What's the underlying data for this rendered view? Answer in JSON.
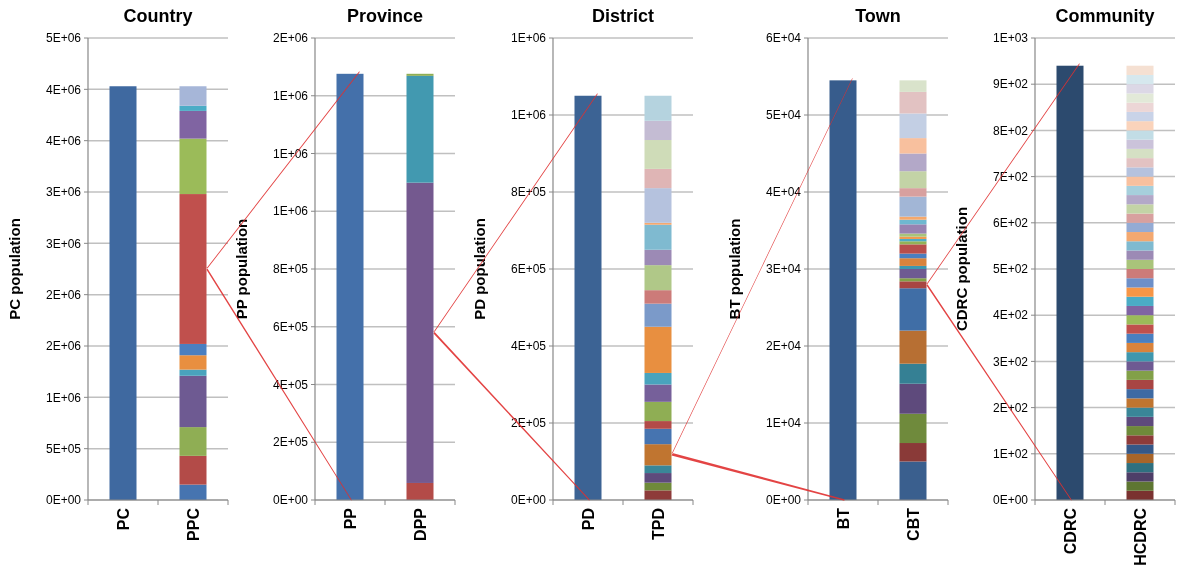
{
  "chart_data": [
    {
      "type": "bar",
      "stacked": true,
      "title": "Country",
      "ylabel": "PC population",
      "categories": [
        "PC",
        "PPC"
      ],
      "grid": "y",
      "ylim": [
        0,
        4500000
      ],
      "yticks": [
        {
          "value": 0,
          "label": "0E+00"
        },
        {
          "value": 500000,
          "label": "5E+05"
        },
        {
          "value": 1000000,
          "label": "1E+06"
        },
        {
          "value": 1500000,
          "label": "2E+06"
        },
        {
          "value": 2000000,
          "label": "2E+06"
        },
        {
          "value": 2500000,
          "label": "3E+06"
        },
        {
          "value": 3000000,
          "label": "3E+06"
        },
        {
          "value": 3500000,
          "label": "4E+06"
        },
        {
          "value": 4000000,
          "label": "4E+06"
        },
        {
          "value": 4500000,
          "label": "5E+06"
        }
      ],
      "series": [
        {
          "color": "#3f69a0",
          "values": [
            4030000,
            null
          ]
        },
        {
          "color": "#4674b0",
          "values": [
            null,
            150000
          ]
        },
        {
          "color": "#b34b48",
          "values": [
            null,
            280000
          ]
        },
        {
          "color": "#8fae54",
          "values": [
            null,
            280000
          ]
        },
        {
          "color": "#6e5a92",
          "values": [
            null,
            500000
          ]
        },
        {
          "color": "#49a3bd",
          "values": [
            null,
            60000
          ]
        },
        {
          "color": "#e88f40",
          "values": [
            null,
            140000
          ]
        },
        {
          "color": "#4a7fc0",
          "values": [
            null,
            110000
          ]
        },
        {
          "color": "#c0504d",
          "values": [
            null,
            1460000
          ]
        },
        {
          "color": "#9bbb59",
          "values": [
            null,
            540000
          ]
        },
        {
          "color": "#8064a2",
          "values": [
            null,
            270000
          ]
        },
        {
          "color": "#4bacc6",
          "values": [
            null,
            50000
          ]
        },
        {
          "color": "#a6b6d8",
          "values": [
            null,
            190000
          ]
        }
      ]
    },
    {
      "type": "bar",
      "stacked": true,
      "title": "Province",
      "ylabel": "PP population",
      "categories": [
        "PP",
        "DPP"
      ],
      "grid": "y",
      "ylim": [
        0,
        1600000
      ],
      "yticks": [
        {
          "value": 0,
          "label": "0E+00"
        },
        {
          "value": 200000,
          "label": "2E+05"
        },
        {
          "value": 400000,
          "label": "4E+05"
        },
        {
          "value": 600000,
          "label": "6E+05"
        },
        {
          "value": 800000,
          "label": "8E+05"
        },
        {
          "value": 1000000,
          "label": "1E+06"
        },
        {
          "value": 1200000,
          "label": "1E+06"
        },
        {
          "value": 1400000,
          "label": "1E+06"
        },
        {
          "value": 1600000,
          "label": "2E+06"
        }
      ],
      "series": [
        {
          "color": "#4470aa",
          "values": [
            1476000,
            null
          ]
        },
        {
          "color": "#b34b48",
          "values": [
            null,
            59000
          ]
        },
        {
          "color": "#74598f",
          "values": [
            null,
            1040000
          ]
        },
        {
          "color": "#4299b0",
          "values": [
            null,
            370000
          ]
        },
        {
          "color": "#8fae54",
          "values": [
            null,
            7000
          ]
        }
      ]
    },
    {
      "type": "bar",
      "stacked": true,
      "title": "District",
      "ylabel": "PD population",
      "categories": [
        "PD",
        "TPD"
      ],
      "grid": "y",
      "ylim": [
        0,
        1200000
      ],
      "yticks": [
        {
          "value": 0,
          "label": "0E+00"
        },
        {
          "value": 200000,
          "label": "2E+05"
        },
        {
          "value": 400000,
          "label": "4E+05"
        },
        {
          "value": 600000,
          "label": "6E+05"
        },
        {
          "value": 800000,
          "label": "8E+05"
        },
        {
          "value": 1000000,
          "label": "1E+06"
        },
        {
          "value": 1200000,
          "label": "1E+06"
        }
      ],
      "series": [
        {
          "color": "#3c6394",
          "values": [
            1050000,
            null
          ]
        },
        {
          "color": "#8e3b3a",
          "values": [
            null,
            25000
          ]
        },
        {
          "color": "#6f8a3a",
          "values": [
            null,
            20000
          ]
        },
        {
          "color": "#5e4a7c",
          "values": [
            null,
            25000
          ]
        },
        {
          "color": "#3a8698",
          "values": [
            null,
            20000
          ]
        },
        {
          "color": "#c07530",
          "values": [
            null,
            55000
          ]
        },
        {
          "color": "#4674b0",
          "values": [
            null,
            40000
          ]
        },
        {
          "color": "#b34b48",
          "values": [
            null,
            20000
          ]
        },
        {
          "color": "#8fae54",
          "values": [
            null,
            50000
          ]
        },
        {
          "color": "#76609a",
          "values": [
            null,
            45000
          ]
        },
        {
          "color": "#49a3bd",
          "values": [
            null,
            30000
          ]
        },
        {
          "color": "#e88f40",
          "values": [
            null,
            120000
          ]
        },
        {
          "color": "#7b9ac9",
          "values": [
            null,
            60000
          ]
        },
        {
          "color": "#cc7b79",
          "values": [
            null,
            35000
          ]
        },
        {
          "color": "#b0c888",
          "values": [
            null,
            65000
          ]
        },
        {
          "color": "#9c8ab5",
          "values": [
            null,
            40000
          ]
        },
        {
          "color": "#7fbad0",
          "values": [
            null,
            65000
          ]
        },
        {
          "color": "#f3a870",
          "values": [
            null,
            5000
          ]
        },
        {
          "color": "#b5c2de",
          "values": [
            null,
            90000
          ]
        },
        {
          "color": "#dfb5b5",
          "values": [
            null,
            50000
          ]
        },
        {
          "color": "#cfdcb8",
          "values": [
            null,
            75000
          ]
        },
        {
          "color": "#c4bcd3",
          "values": [
            null,
            50000
          ]
        },
        {
          "color": "#b5d3df",
          "values": [
            null,
            65000
          ]
        }
      ]
    },
    {
      "type": "bar",
      "stacked": true,
      "title": "Town",
      "ylabel": "BT population",
      "categories": [
        "BT",
        "CBT"
      ],
      "grid": "y",
      "ylim": [
        0,
        60000
      ],
      "yticks": [
        {
          "value": 0,
          "label": "0E+00"
        },
        {
          "value": 10000,
          "label": "1E+04"
        },
        {
          "value": 20000,
          "label": "2E+04"
        },
        {
          "value": 30000,
          "label": "3E+04"
        },
        {
          "value": 40000,
          "label": "4E+04"
        },
        {
          "value": 50000,
          "label": "5E+04"
        },
        {
          "value": 60000,
          "label": "6E+04"
        }
      ],
      "series": [
        {
          "color": "#375c8c",
          "values": [
            54500,
            null
          ]
        },
        {
          "color": "#3a5f8e",
          "values": [
            null,
            5000
          ]
        },
        {
          "color": "#8a3a38",
          "values": [
            null,
            2400
          ]
        },
        {
          "color": "#6f8a3c",
          "values": [
            null,
            3800
          ]
        },
        {
          "color": "#5e4a7c",
          "values": [
            null,
            3900
          ]
        },
        {
          "color": "#358094",
          "values": [
            null,
            2600
          ]
        },
        {
          "color": "#b76f33",
          "values": [
            null,
            4300
          ]
        },
        {
          "color": "#406ea6",
          "values": [
            null,
            5500
          ]
        },
        {
          "color": "#a84543",
          "values": [
            null,
            900
          ]
        },
        {
          "color": "#82a048",
          "values": [
            null,
            400
          ]
        },
        {
          "color": "#6e5a92",
          "values": [
            null,
            1200
          ]
        },
        {
          "color": "#3f97ae",
          "values": [
            null,
            400
          ]
        },
        {
          "color": "#d9833c",
          "values": [
            null,
            1000
          ]
        },
        {
          "color": "#4a7fc0",
          "values": [
            null,
            600
          ]
        },
        {
          "color": "#b84e4b",
          "values": [
            null,
            1200
          ]
        },
        {
          "color": "#93b356",
          "values": [
            null,
            400
          ]
        },
        {
          "color": "#4bacc6",
          "values": [
            null,
            300
          ]
        },
        {
          "color": "#f09a50",
          "values": [
            null,
            300
          ]
        },
        {
          "color": "#a9c47a",
          "values": [
            null,
            400
          ]
        },
        {
          "color": "#9883b1",
          "values": [
            null,
            1200
          ]
        },
        {
          "color": "#6fb8d0",
          "values": [
            null,
            600
          ]
        },
        {
          "color": "#f5a86c",
          "values": [
            null,
            400
          ]
        },
        {
          "color": "#a2b6d6",
          "values": [
            null,
            2600
          ]
        },
        {
          "color": "#d8a09f",
          "values": [
            null,
            1100
          ]
        },
        {
          "color": "#c3d3a6",
          "values": [
            null,
            2200
          ]
        },
        {
          "color": "#b3a8c8",
          "values": [
            null,
            2300
          ]
        },
        {
          "color": "#f8c09e",
          "values": [
            null,
            2000
          ]
        },
        {
          "color": "#c3cfe4",
          "values": [
            null,
            3200
          ]
        },
        {
          "color": "#e2c2c2",
          "values": [
            null,
            2800
          ]
        },
        {
          "color": "#d9e3cb",
          "values": [
            null,
            1500
          ]
        }
      ]
    },
    {
      "type": "bar",
      "stacked": true,
      "title": "Community",
      "ylabel": "CDRC population",
      "categories": [
        "CDRC",
        "HCDRC"
      ],
      "grid": "y",
      "ylim": [
        0,
        1000
      ],
      "yticks": [
        {
          "value": 0,
          "label": "0E+00"
        },
        {
          "value": 100,
          "label": "1E+02"
        },
        {
          "value": 200,
          "label": "2E+02"
        },
        {
          "value": 300,
          "label": "3E+02"
        },
        {
          "value": 400,
          "label": "4E+02"
        },
        {
          "value": 500,
          "label": "5E+02"
        },
        {
          "value": 600,
          "label": "6E+02"
        },
        {
          "value": 700,
          "label": "7E+02"
        },
        {
          "value": 800,
          "label": "8E+02"
        },
        {
          "value": 900,
          "label": "9E+02"
        },
        {
          "value": 1000,
          "label": "1E+03"
        }
      ],
      "series": [
        {
          "color": "#2c4a6e",
          "values": [
            940,
            null
          ]
        },
        {
          "color": "#7a3230",
          "values": [
            null,
            20
          ]
        },
        {
          "color": "#5e7632",
          "values": [
            null,
            20
          ]
        },
        {
          "color": "#4e3e68",
          "values": [
            null,
            20
          ]
        },
        {
          "color": "#2f7080",
          "values": [
            null,
            20
          ]
        },
        {
          "color": "#a8652a",
          "values": [
            null,
            20
          ]
        },
        {
          "color": "#355888",
          "values": [
            null,
            20
          ]
        },
        {
          "color": "#8e3b3a",
          "values": [
            null,
            20
          ]
        },
        {
          "color": "#6f8a3a",
          "values": [
            null,
            20
          ]
        },
        {
          "color": "#5e4a7c",
          "values": [
            null,
            20
          ]
        },
        {
          "color": "#3a8698",
          "values": [
            null,
            20
          ]
        },
        {
          "color": "#c07530",
          "values": [
            null,
            20
          ]
        },
        {
          "color": "#3e6aa3",
          "values": [
            null,
            20
          ]
        },
        {
          "color": "#a84543",
          "values": [
            null,
            20
          ]
        },
        {
          "color": "#82a048",
          "values": [
            null,
            20
          ]
        },
        {
          "color": "#6e5a92",
          "values": [
            null,
            20
          ]
        },
        {
          "color": "#3f97ae",
          "values": [
            null,
            20
          ]
        },
        {
          "color": "#d9833c",
          "values": [
            null,
            20
          ]
        },
        {
          "color": "#4a7fc0",
          "values": [
            null,
            20
          ]
        },
        {
          "color": "#c0504d",
          "values": [
            null,
            20
          ]
        },
        {
          "color": "#9bbb59",
          "values": [
            null,
            20
          ]
        },
        {
          "color": "#8064a2",
          "values": [
            null,
            20
          ]
        },
        {
          "color": "#4bacc6",
          "values": [
            null,
            20
          ]
        },
        {
          "color": "#f79646",
          "values": [
            null,
            20
          ]
        },
        {
          "color": "#6d8fc8",
          "values": [
            null,
            20
          ]
        },
        {
          "color": "#cc7b79",
          "values": [
            null,
            20
          ]
        },
        {
          "color": "#a9c47a",
          "values": [
            null,
            20
          ]
        },
        {
          "color": "#9c8ab5",
          "values": [
            null,
            20
          ]
        },
        {
          "color": "#7fbad0",
          "values": [
            null,
            20
          ]
        },
        {
          "color": "#f3a870",
          "values": [
            null,
            20
          ]
        },
        {
          "color": "#94abd4",
          "values": [
            null,
            20
          ]
        },
        {
          "color": "#d8a09f",
          "values": [
            null,
            20
          ]
        },
        {
          "color": "#c3d3a6",
          "values": [
            null,
            20
          ]
        },
        {
          "color": "#b3a8c8",
          "values": [
            null,
            20
          ]
        },
        {
          "color": "#a6cfdc",
          "values": [
            null,
            20
          ]
        },
        {
          "color": "#f8c09e",
          "values": [
            null,
            20
          ]
        },
        {
          "color": "#b5c2de",
          "values": [
            null,
            20
          ]
        },
        {
          "color": "#e2c2c2",
          "values": [
            null,
            20
          ]
        },
        {
          "color": "#d5e0c4",
          "values": [
            null,
            20
          ]
        },
        {
          "color": "#cbc3da",
          "values": [
            null,
            20
          ]
        },
        {
          "color": "#c2dde6",
          "values": [
            null,
            20
          ]
        },
        {
          "color": "#fad3bb",
          "values": [
            null,
            20
          ]
        },
        {
          "color": "#c9d3e8",
          "values": [
            null,
            20
          ]
        },
        {
          "color": "#ecd6d6",
          "values": [
            null,
            20
          ]
        },
        {
          "color": "#e2e9d8",
          "values": [
            null,
            20
          ]
        },
        {
          "color": "#dcd8e6",
          "values": [
            null,
            20
          ]
        },
        {
          "color": "#d6e8ee",
          "values": [
            null,
            20
          ]
        },
        {
          "color": "#f5e0d2",
          "values": [
            null,
            20
          ]
        }
      ]
    }
  ]
}
